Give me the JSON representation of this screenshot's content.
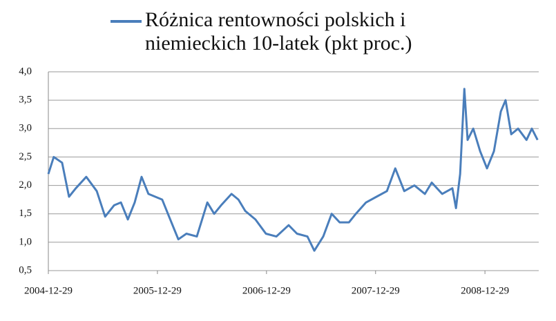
{
  "chart_data": {
    "type": "line",
    "series": [
      {
        "name": "Różnica rentowności polskich i niemieckich 10-latek (pkt proc.)",
        "color": "#4a7ebb",
        "x": [
          "2004-12-29",
          "2005-01-16",
          "2005-02-13",
          "2005-03-08",
          "2005-03-31",
          "2005-05-05",
          "2005-06-09",
          "2005-07-07",
          "2005-08-06",
          "2005-08-29",
          "2005-09-21",
          "2005-10-14",
          "2005-11-06",
          "2005-11-29",
          "2006-01-14",
          "2006-02-06",
          "2006-03-09",
          "2006-04-05",
          "2006-05-10",
          "2006-06-14",
          "2006-07-07",
          "2006-07-30",
          "2006-09-03",
          "2006-09-26",
          "2006-10-19",
          "2006-11-22",
          "2006-12-27",
          "2007-01-31",
          "2007-03-13",
          "2007-04-10",
          "2007-05-15",
          "2007-06-07",
          "2007-07-07",
          "2007-08-04",
          "2007-08-31",
          "2007-10-01",
          "2007-10-24",
          "2007-11-27",
          "2008-01-01",
          "2008-02-05",
          "2008-03-04",
          "2008-04-03",
          "2008-05-07",
          "2008-06-11",
          "2008-07-04",
          "2008-08-08",
          "2008-09-11",
          "2008-09-23",
          "2008-10-07",
          "2008-10-21",
          "2008-11-01",
          "2008-11-20",
          "2008-12-13",
          "2009-01-05",
          "2009-01-28",
          "2009-02-20",
          "2009-03-08",
          "2009-03-27",
          "2009-04-19",
          "2009-05-17",
          "2009-06-04",
          "2009-06-23"
        ],
        "values": [
          2.2,
          2.5,
          2.4,
          1.8,
          1.95,
          2.15,
          1.9,
          1.45,
          1.65,
          1.7,
          1.4,
          1.7,
          2.15,
          1.85,
          1.75,
          1.45,
          1.05,
          1.15,
          1.1,
          1.7,
          1.5,
          1.65,
          1.85,
          1.75,
          1.55,
          1.4,
          1.15,
          1.1,
          1.3,
          1.15,
          1.1,
          0.85,
          1.1,
          1.5,
          1.35,
          1.35,
          1.5,
          1.7,
          1.8,
          1.9,
          2.3,
          1.9,
          2.0,
          1.85,
          2.05,
          1.85,
          1.95,
          1.6,
          2.2,
          3.7,
          2.8,
          3.0,
          2.6,
          2.3,
          2.6,
          3.3,
          3.5,
          2.9,
          3.0,
          2.8,
          3.0,
          2.8
        ]
      }
    ],
    "xlim": [
      "2004-12-29",
      "2009-06-27"
    ],
    "xticks": [
      "2004-12-29",
      "2005-12-29",
      "2006-12-29",
      "2007-12-29",
      "2008-12-29"
    ],
    "ylim": [
      0.5,
      4.0
    ],
    "yticks": [
      {
        "value": 0.5,
        "label": "0,5"
      },
      {
        "value": 1.0,
        "label": "1,0"
      },
      {
        "value": 1.5,
        "label": "1,5"
      },
      {
        "value": 2.0,
        "label": "2,0"
      },
      {
        "value": 2.5,
        "label": "2,5"
      },
      {
        "value": 3.0,
        "label": "3,0"
      },
      {
        "value": 3.5,
        "label": "3,5"
      },
      {
        "value": 4.0,
        "label": "4,0"
      }
    ],
    "grid": true
  }
}
